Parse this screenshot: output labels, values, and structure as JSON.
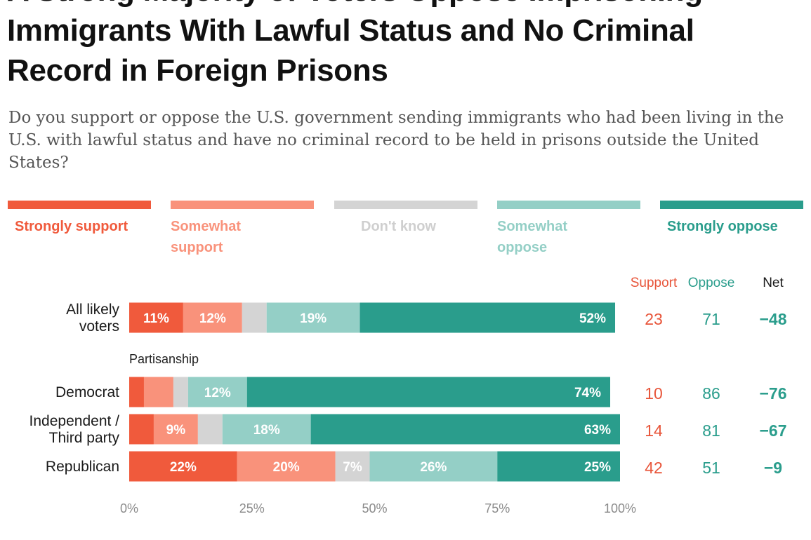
{
  "title": "A Strong Majority of Voters Oppose Imprisoning Immigrants With Lawful Status and No Criminal Record in Foreign Prisons",
  "subtitle": "Do you support or oppose the U.S. government sending immigrants who had been living in the U.S. with lawful status and have no criminal record to be held in prisons outside the United States?",
  "colors": {
    "strongly_support": "#f05a3c",
    "somewhat_support": "#f9927b",
    "dont_know": "#d4d4d4",
    "somewhat_oppose": "#94cfc6",
    "strongly_oppose": "#2a9d8c",
    "support_text": "#e8553a",
    "oppose_text": "#2a9d8c",
    "net_text": "#2a9d8c"
  },
  "legend": [
    {
      "label": "Strongly support",
      "color": "#f05a3c",
      "text_color": "#f05a3c"
    },
    {
      "label": "Somewhat support",
      "color": "#f9927b",
      "text_color": "#f9927b"
    },
    {
      "label": "Don't know",
      "color": "#d4d4d4",
      "text_color": "#cfcfcf"
    },
    {
      "label": "Somewhat oppose",
      "color": "#94cfc6",
      "text_color": "#94cfc6"
    },
    {
      "label": "Strongly oppose",
      "color": "#2a9d8c",
      "text_color": "#2a9d8c"
    }
  ],
  "chart_data": {
    "type": "bar",
    "orientation": "horizontal",
    "stacked": true,
    "xlim": [
      0,
      100
    ],
    "x_ticks": [
      "0%",
      "25%",
      "50%",
      "75%",
      "100%"
    ],
    "group_label": "Partisanship",
    "summary_headers": {
      "support": "Support",
      "oppose": "Oppose",
      "net": "Net"
    },
    "series_names": [
      "Strongly support",
      "Somewhat support",
      "Don't know",
      "Somewhat oppose",
      "Strongly oppose"
    ],
    "rows": [
      {
        "label": [
          "All likely",
          "voters"
        ],
        "values": [
          11,
          12,
          5,
          19,
          52
        ],
        "value_labels": [
          "11%",
          "12%",
          "",
          "19%",
          "52%"
        ],
        "support": "23",
        "oppose": "71",
        "net": "−48"
      },
      {
        "label": [
          "Democrat"
        ],
        "values": [
          3,
          6,
          3,
          12,
          74
        ],
        "value_labels": [
          "",
          "",
          "",
          "12%",
          "74%"
        ],
        "support": "10",
        "oppose": "86",
        "net": "−76"
      },
      {
        "label": [
          "Independent /",
          "Third party"
        ],
        "values": [
          5,
          9,
          5,
          18,
          63
        ],
        "value_labels": [
          "",
          "9%",
          "",
          "18%",
          "63%"
        ],
        "support": "14",
        "oppose": "81",
        "net": "−67"
      },
      {
        "label": [
          "Republican"
        ],
        "values": [
          22,
          20,
          7,
          26,
          25
        ],
        "value_labels": [
          "22%",
          "20%",
          "7%",
          "26%",
          "25%"
        ],
        "support": "42",
        "oppose": "51",
        "net": "−9"
      }
    ]
  }
}
